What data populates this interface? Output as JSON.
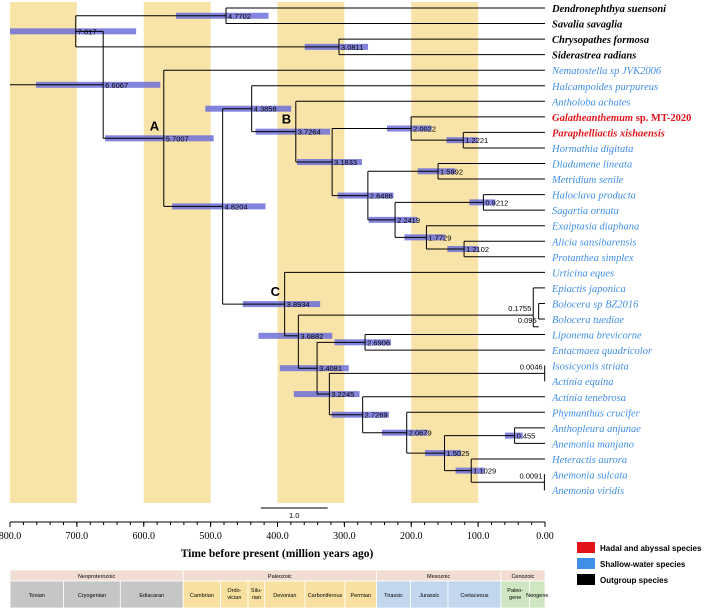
{
  "chart_data": {
    "type": "phylogenetic-timetree",
    "xlabel": "Time before present (million years ago)",
    "xlim": [
      800,
      0
    ],
    "x_ticks": [
      "800.0",
      "700.0",
      "600.0",
      "500.0",
      "400.0",
      "300.0",
      "200.0",
      "100.0",
      "0.00"
    ],
    "scale_bar_label": "1.0",
    "shaded_bands_ma": [
      [
        800,
        700
      ],
      [
        600,
        500
      ],
      [
        400,
        300
      ],
      [
        200,
        100
      ]
    ],
    "colors": {
      "hadal": "#e3151b",
      "shallow": "#3f8fe8",
      "outgroup": "#000000",
      "band": "#f8e3a8",
      "bar": "#6d6fd8",
      "branch": "#000000"
    },
    "legend": [
      {
        "label": "Hadal and abyssal species",
        "color": "#e3151b"
      },
      {
        "label": "Shallow-water species",
        "color": "#3f8fe8"
      },
      {
        "label": "Outgroup species",
        "color": "#000000"
      }
    ],
    "taxa": [
      {
        "name": "Dendronephthya suensoni",
        "group": "outgroup"
      },
      {
        "name": "Savalia savaglia",
        "group": "outgroup"
      },
      {
        "name": "Chrysopathes formosa",
        "group": "outgroup"
      },
      {
        "name": "Siderastrea radians",
        "group": "outgroup"
      },
      {
        "name": "Nematostella sp JVK2006",
        "group": "shallow"
      },
      {
        "name": "Halcampoides purpureus",
        "group": "shallow"
      },
      {
        "name": "Antholoba achates",
        "group": "shallow"
      },
      {
        "name": "Galatheanthemum sp. MT-2020",
        "group": "hadal",
        "italic_part": "Galatheanthemum",
        "plain_part": " sp. MT-2020"
      },
      {
        "name": "Paraphelliactis xishaensis",
        "group": "hadal"
      },
      {
        "name": "Hormathia digitata",
        "group": "shallow"
      },
      {
        "name": "Diadumene lineata",
        "group": "shallow"
      },
      {
        "name": "Metridium senile",
        "group": "shallow"
      },
      {
        "name": "Haloclava producta",
        "group": "shallow"
      },
      {
        "name": "Sagartia ornata",
        "group": "shallow"
      },
      {
        "name": "Exaiptasia diaphana",
        "group": "shallow"
      },
      {
        "name": "Alicia sansibarensis",
        "group": "shallow"
      },
      {
        "name": "Protanthea simplex",
        "group": "shallow"
      },
      {
        "name": "Urticina eques",
        "group": "shallow"
      },
      {
        "name": "Epiactis japonica",
        "group": "shallow"
      },
      {
        "name": "Bolocera sp BZ2016",
        "group": "shallow"
      },
      {
        "name": "Bolocera tuediae",
        "group": "shallow"
      },
      {
        "name": "Liponema brevicorne",
        "group": "shallow"
      },
      {
        "name": "Entacmaea quadricolor",
        "group": "shallow"
      },
      {
        "name": "Isosicyonis striata",
        "group": "shallow"
      },
      {
        "name": "Actinia equina",
        "group": "shallow"
      },
      {
        "name": "Actinia tenebrosa",
        "group": "shallow"
      },
      {
        "name": "Phymanthus crucifer",
        "group": "shallow"
      },
      {
        "name": "Anthopleura anjunae",
        "group": "shallow"
      },
      {
        "name": "Anemonia manjano",
        "group": "shallow"
      },
      {
        "name": "Heteractis aurora",
        "group": "shallow"
      },
      {
        "name": "Anemonia sulcata",
        "group": "shallow"
      },
      {
        "name": "Anemonia viridis",
        "group": "shallow"
      }
    ],
    "nodes": [
      {
        "id": "n1",
        "age": 6.6067,
        "label": "6.6067",
        "children": [
          "n2",
          "n4"
        ]
      },
      {
        "id": "n2",
        "age": 7.017,
        "label": "7.017",
        "children": [
          "n3",
          "n3b"
        ]
      },
      {
        "id": "n3",
        "age": 4.7702,
        "label": "4.7702",
        "children": [
          "t0",
          "t1"
        ]
      },
      {
        "id": "n3b",
        "age": 3.0811,
        "label": "3.0811",
        "children": [
          "t2",
          "t3"
        ]
      },
      {
        "id": "n4",
        "age": 5.7007,
        "label": "5.7007",
        "clade": "A",
        "children": [
          "t4",
          "n5"
        ]
      },
      {
        "id": "n5",
        "age": 4.8204,
        "label": "4.8204",
        "children": [
          "n6",
          "n7"
        ]
      },
      {
        "id": "n6",
        "age": 4.3858,
        "label": "4.3858",
        "children": [
          "t5",
          "n8"
        ]
      },
      {
        "id": "n8",
        "age": 3.7264,
        "label": "3.7264",
        "clade": "B",
        "children": [
          "t6",
          "n9"
        ]
      },
      {
        "id": "n9",
        "age": 3.1833,
        "label": "3.1833",
        "children": [
          "n10",
          "n11"
        ]
      },
      {
        "id": "n10",
        "age": 2.0022,
        "label": "2.0022",
        "children": [
          "t7",
          "n10b"
        ]
      },
      {
        "id": "n10b",
        "age": 1.2221,
        "label": "1.2221",
        "children": [
          "t8",
          "t9"
        ]
      },
      {
        "id": "n11",
        "age": 2.6486,
        "label": "2.6486",
        "children": [
          "n12",
          "n13"
        ]
      },
      {
        "id": "n12",
        "age": 1.5992,
        "label": "1.5992",
        "children": [
          "t10",
          "t11"
        ]
      },
      {
        "id": "n13",
        "age": 2.2419,
        "label": "2.2419",
        "children": [
          "n14",
          "n15"
        ]
      },
      {
        "id": "n14",
        "age": 0.9212,
        "label": "0.9212",
        "children": [
          "t12",
          "t13"
        ]
      },
      {
        "id": "n15",
        "age": 1.7729,
        "label": "1.7729",
        "children": [
          "t14",
          "n16"
        ]
      },
      {
        "id": "n16",
        "age": 1.2102,
        "label": "1.2102",
        "children": [
          "t15",
          "t16"
        ]
      },
      {
        "id": "n7",
        "age": 3.8934,
        "label": "3.8934",
        "clade": "C",
        "children": [
          "t17",
          "n17"
        ]
      },
      {
        "id": "n17",
        "age": 3.6882,
        "label": "3.6882",
        "children": [
          "n18",
          "n19"
        ]
      },
      {
        "id": "n18",
        "age": 0.1755,
        "label": "0.1755",
        "children": [
          "t18",
          "t19",
          "t20"
        ]
      },
      {
        "id": "n19",
        "age": 3.4081,
        "label": "3.4081",
        "children": [
          "n20",
          "n21"
        ]
      },
      {
        "id": "n20",
        "age": 2.6906,
        "label": "2.6906",
        "children": [
          "t21",
          "t22"
        ]
      },
      {
        "id": "n21",
        "age": 3.2245,
        "label": "3.2245",
        "children": [
          "n22",
          "n23"
        ]
      },
      {
        "id": "n22",
        "age": 0.0046,
        "label": "0.0046",
        "children": [
          "t23",
          "t24"
        ]
      },
      {
        "id": "n23",
        "age": 2.7269,
        "label": "2.7269",
        "children": [
          "t25",
          "n24"
        ]
      },
      {
        "id": "n24",
        "age": 2.0679,
        "label": "2.0679",
        "children": [
          "t26",
          "n25"
        ]
      },
      {
        "id": "n25",
        "age": 1.5025,
        "label": "1.5025",
        "children": [
          "n26",
          "n27"
        ]
      },
      {
        "id": "n26",
        "age": 0.455,
        "label": "0.455",
        "children": [
          "t27",
          "t28"
        ]
      },
      {
        "id": "n27",
        "age": 1.1029,
        "label": "1.1029",
        "children": [
          "t29",
          "n28"
        ]
      },
      {
        "id": "n28",
        "age": 0.0091,
        "label": "0.0091",
        "children": [
          "t30",
          "t31"
        ]
      },
      {
        "id": "n18b",
        "age": 0.095,
        "label": "0.095",
        "children": [
          "t19",
          "t20"
        ]
      }
    ],
    "timescale": {
      "eras": [
        {
          "name": "Neoproterozoic",
          "from": 800,
          "to": 541
        },
        {
          "name": "Paleozoic",
          "from": 541,
          "to": 252
        },
        {
          "name": "Mesozoic",
          "from": 252,
          "to": 66
        },
        {
          "name": "Cenozoic",
          "from": 66,
          "to": 0
        }
      ],
      "periods": [
        {
          "name": "Tonian",
          "from": 800,
          "to": 720,
          "color": "#c6c6c6"
        },
        {
          "name": "Cryogenian",
          "from": 720,
          "to": 635,
          "color": "#c6c6c6"
        },
        {
          "name": "Ediacaran",
          "from": 635,
          "to": 541,
          "color": "#c6c6c6"
        },
        {
          "name": "Cambrian",
          "from": 541,
          "to": 485,
          "color": "#f8e1a0"
        },
        {
          "name": "Ordo-\nvician",
          "from": 485,
          "to": 444,
          "color": "#f8e1a0"
        },
        {
          "name": "Silu-\nrian",
          "from": 444,
          "to": 419,
          "color": "#f8e1a0"
        },
        {
          "name": "Devonian",
          "from": 419,
          "to": 359,
          "color": "#f8e1a0"
        },
        {
          "name": "Carboniferous",
          "from": 359,
          "to": 299,
          "color": "#f8e1a0"
        },
        {
          "name": "Permian",
          "from": 299,
          "to": 252,
          "color": "#f8e1a0"
        },
        {
          "name": "Triassic",
          "from": 252,
          "to": 201,
          "color": "#c2d6ee"
        },
        {
          "name": "Jurassic",
          "from": 201,
          "to": 145,
          "color": "#c2d6ee"
        },
        {
          "name": "Cretaceous",
          "from": 145,
          "to": 66,
          "color": "#c2d6ee"
        },
        {
          "name": "Paleo-\ngene",
          "from": 66,
          "to": 23,
          "color": "#cfe6c2"
        },
        {
          "name": "Neogene",
          "from": 23,
          "to": 0,
          "color": "#cfe6c2"
        }
      ]
    }
  }
}
